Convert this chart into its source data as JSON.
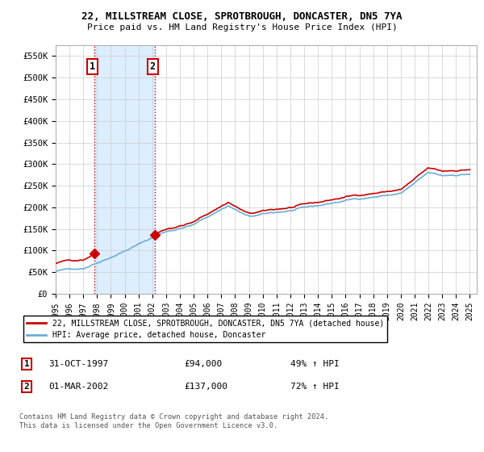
{
  "title1": "22, MILLSTREAM CLOSE, SPROTBROUGH, DONCASTER, DN5 7YA",
  "title2": "Price paid vs. HM Land Registry's House Price Index (HPI)",
  "legend_line1": "22, MILLSTREAM CLOSE, SPROTBROUGH, DONCASTER, DN5 7YA (detached house)",
  "legend_line2": "HPI: Average price, detached house, Doncaster",
  "transaction1_label": "1",
  "transaction1_date": "31-OCT-1997",
  "transaction1_price": "£94,000",
  "transaction1_hpi": "49% ↑ HPI",
  "transaction2_label": "2",
  "transaction2_date": "01-MAR-2002",
  "transaction2_price": "£137,000",
  "transaction2_hpi": "72% ↑ HPI",
  "footer": "Contains HM Land Registry data © Crown copyright and database right 2024.\nThis data is licensed under the Open Government Licence v3.0.",
  "sale1_x": 1997.833,
  "sale1_y": 94000,
  "sale2_x": 2002.167,
  "sale2_y": 137000,
  "hpi_color": "#6baed6",
  "price_color": "#cc0000",
  "vline_color": "#cc0000",
  "shade_color": "#ddeeff",
  "ylim_min": 0,
  "ylim_max": 575000,
  "xlim_min": 1995.0,
  "xlim_max": 2025.5,
  "yticks": [
    0,
    50000,
    100000,
    150000,
    200000,
    250000,
    300000,
    350000,
    400000,
    450000,
    500000,
    550000
  ],
  "xticks": [
    1995,
    1996,
    1997,
    1998,
    1999,
    2000,
    2001,
    2002,
    2003,
    2004,
    2005,
    2006,
    2007,
    2008,
    2009,
    2010,
    2011,
    2012,
    2013,
    2014,
    2015,
    2016,
    2017,
    2018,
    2019,
    2020,
    2021,
    2022,
    2023,
    2024,
    2025
  ]
}
